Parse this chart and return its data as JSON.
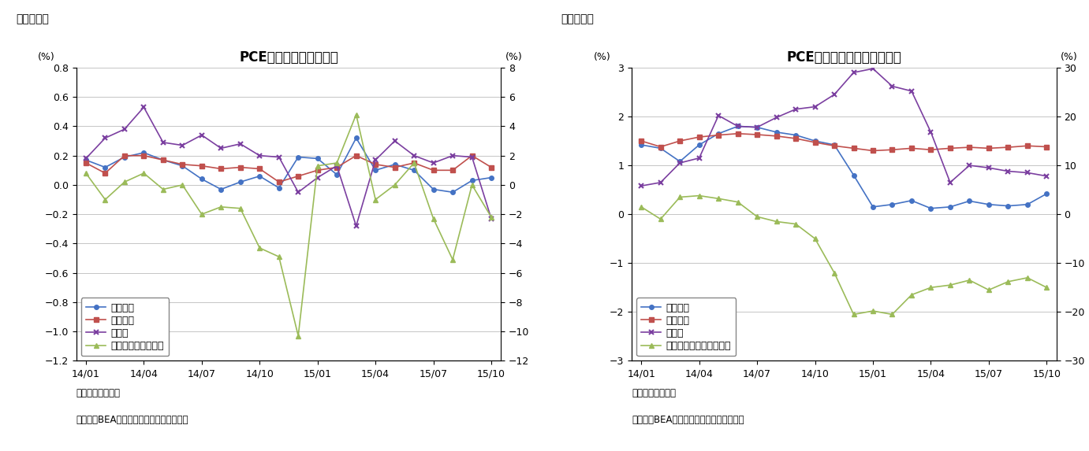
{
  "chart1": {
    "title": "PCE価格指数（前月比）",
    "fig_label": "（図表６）",
    "pct_left": "(%)",
    "pct_right": "(%)",
    "ylim_left": [
      -1.2,
      0.8
    ],
    "ylim_right": [
      -12,
      8
    ],
    "yticks_left": [
      -1.2,
      -1.0,
      -0.8,
      -0.6,
      -0.4,
      -0.2,
      0.0,
      0.2,
      0.4,
      0.6,
      0.8
    ],
    "yticks_right": [
      -12,
      -10,
      -8,
      -6,
      -4,
      -2,
      0,
      2,
      4,
      6,
      8
    ],
    "xtick_positions": [
      0,
      3,
      6,
      9,
      12,
      15,
      18,
      21
    ],
    "xtick_labels": [
      "14/01",
      "14/04",
      "14/07",
      "14/10",
      "15/01",
      "15/04",
      "15/07",
      "15/10"
    ],
    "note1": "（注）季節調整済",
    "note2": "（資料）BEAよりニッセイ基礎研究所作成",
    "legend_labels": [
      "総合指数",
      "コア指数",
      "食料品",
      "エネルギー（右軸）"
    ],
    "total_color": "#4472C4",
    "core_color": "#C0504D",
    "food_color": "#7B3FA0",
    "energy_color": "#9BBB59",
    "total_values": [
      0.17,
      0.12,
      0.19,
      0.22,
      0.17,
      0.13,
      0.04,
      -0.03,
      0.02,
      0.06,
      -0.02,
      0.19,
      0.18,
      0.07,
      0.32,
      0.1,
      0.14,
      0.1,
      -0.03,
      -0.05,
      0.03,
      0.05
    ],
    "core_values": [
      0.15,
      0.08,
      0.2,
      0.2,
      0.17,
      0.14,
      0.13,
      0.11,
      0.12,
      0.11,
      0.02,
      0.06,
      0.1,
      0.12,
      0.2,
      0.14,
      0.12,
      0.15,
      0.1,
      0.1,
      0.2,
      0.12
    ],
    "food_values": [
      0.18,
      0.32,
      0.38,
      0.53,
      0.29,
      0.27,
      0.34,
      0.25,
      0.28,
      0.2,
      0.19,
      -0.05,
      0.05,
      0.13,
      -0.28,
      0.17,
      0.3,
      0.2,
      0.15,
      0.2,
      0.19,
      -0.23
    ],
    "energy_values": [
      0.8,
      -1.0,
      0.2,
      0.8,
      -0.3,
      0.0,
      -2.0,
      -1.5,
      -1.6,
      -4.3,
      -4.9,
      -10.3,
      1.3,
      1.5,
      4.8,
      -1.0,
      0.0,
      1.5,
      -2.3,
      -5.1,
      0.0,
      -2.2
    ]
  },
  "chart2": {
    "title": "PCE価格指数（前年同月比）",
    "fig_label": "（図表７）",
    "pct_left": "(%)",
    "pct_right": "(%)",
    "ylim_left": [
      -3,
      3
    ],
    "ylim_right": [
      -30,
      30
    ],
    "yticks_left": [
      -3,
      -2,
      -1,
      0,
      1,
      2,
      3
    ],
    "yticks_right": [
      -30,
      -20,
      -10,
      0,
      10,
      20,
      30
    ],
    "xtick_positions": [
      0,
      3,
      6,
      9,
      12,
      15,
      18,
      21
    ],
    "xtick_labels": [
      "14/01",
      "14/04",
      "14/07",
      "14/10",
      "15/01",
      "15/04",
      "15/07",
      "15/10"
    ],
    "note1": "（注）季節調整済",
    "note2": "（資料）BEAよりニッセイ基礎研究所作成",
    "legend_labels": [
      "総合指数",
      "コア指数",
      "食料品",
      "エネルギー関連（右軸）"
    ],
    "total_color": "#4472C4",
    "core_color": "#C0504D",
    "food_color": "#7B3FA0",
    "energy_color": "#9BBB59",
    "total_values": [
      1.42,
      1.35,
      1.08,
      1.42,
      1.65,
      1.8,
      1.78,
      1.68,
      1.62,
      1.5,
      1.42,
      0.8,
      0.15,
      0.2,
      0.28,
      0.12,
      0.15,
      0.27,
      0.2,
      0.17,
      0.2,
      0.42
    ],
    "core_values": [
      1.5,
      1.38,
      1.5,
      1.58,
      1.62,
      1.65,
      1.63,
      1.6,
      1.55,
      1.47,
      1.4,
      1.35,
      1.3,
      1.32,
      1.35,
      1.32,
      1.35,
      1.37,
      1.35,
      1.37,
      1.4,
      1.38
    ],
    "food_values": [
      0.58,
      0.65,
      1.05,
      1.15,
      2.02,
      1.8,
      1.78,
      1.98,
      2.15,
      2.2,
      2.45,
      2.9,
      2.98,
      2.62,
      2.52,
      1.68,
      0.65,
      1.0,
      0.95,
      0.88,
      0.85,
      0.78
    ],
    "energy_values": [
      1.5,
      -1.0,
      3.5,
      3.8,
      3.2,
      2.5,
      -0.5,
      -1.5,
      -2.0,
      -5.0,
      -12.0,
      -20.5,
      -19.8,
      -20.5,
      -16.5,
      -15.0,
      -14.5,
      -13.5,
      -15.5,
      -13.8,
      -13.0,
      -15.0
    ]
  },
  "bg_color": "#FFFFFF",
  "grid_color": "#BBBBBB",
  "title_fontsize": 12,
  "tick_fontsize": 9,
  "legend_fontsize": 9,
  "note_fontsize": 8.5,
  "figlabel_fontsize": 10
}
